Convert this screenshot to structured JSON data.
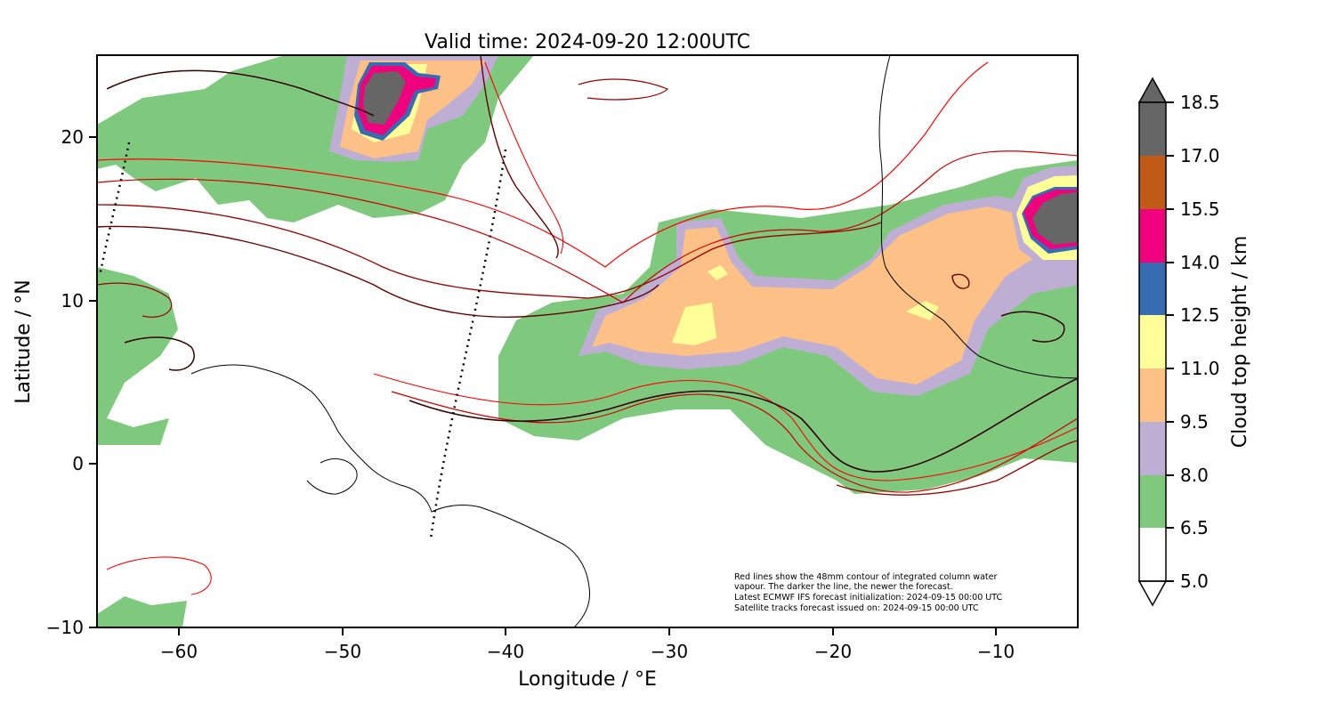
{
  "map": {
    "title": "Valid time: 2024-09-20 12:00UTC",
    "xlabel": "Longitude / °E",
    "ylabel": "Latitude / °N",
    "x_ticks": [
      -60,
      -50,
      -40,
      -30,
      -20,
      -10
    ],
    "x_tick_labels": [
      "−60",
      "−50",
      "−40",
      "−30",
      "−20",
      "−10"
    ],
    "y_ticks": [
      20,
      10,
      0,
      -10
    ],
    "y_tick_labels": [
      "20",
      "10",
      "0",
      "−10"
    ],
    "extent": {
      "lon": [
        -65,
        -5
      ],
      "lat": [
        -10,
        25
      ]
    },
    "note_lines": [
      "Red lines show the 48mm contour of integrated column water",
      "vapour. The darker the line, the newer the forecast.",
      "Latest ECMWF IFS forecast initialization: 2024-09-15 00:00 UTC",
      "Satellite tracks forecast issued on: 2024-09-15 00:00 UTC"
    ]
  },
  "colorbar": {
    "label": "Cloud top height / km",
    "levels": [
      5.0,
      6.5,
      8.0,
      9.5,
      11.0,
      12.5,
      14.0,
      15.5,
      17.0,
      18.5
    ],
    "level_labels": [
      "5.0",
      "6.5",
      "8.0",
      "9.5",
      "11.0",
      "12.5",
      "14.0",
      "15.5",
      "17.0",
      "18.5"
    ],
    "colors": [
      "#ffffff",
      "#7fc97f",
      "#beaed4",
      "#fdc086",
      "#ffff99",
      "#386cb0",
      "#f0027f",
      "#bf5b17",
      "#666666"
    ],
    "extend": "both"
  },
  "contour_colors": [
    "#ff0000",
    "#cc0000",
    "#990000",
    "#660000",
    "#330000"
  ],
  "coastline_color": "#000000",
  "track_style": "dotted"
}
